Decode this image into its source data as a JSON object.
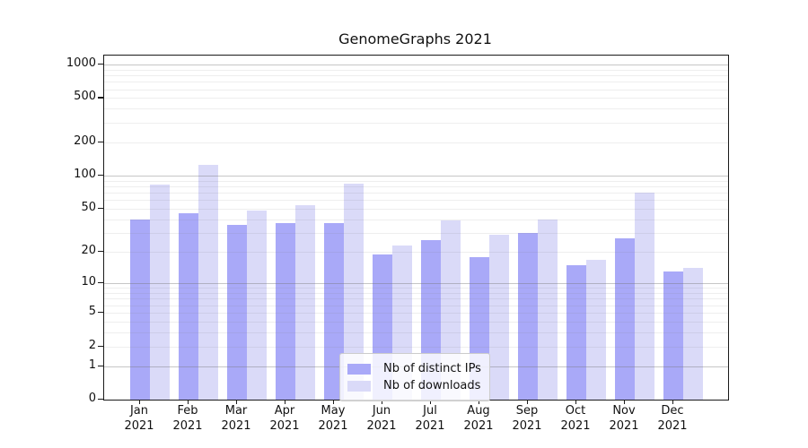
{
  "chart_data": {
    "type": "bar",
    "title": "GenomeGraphs 2021",
    "categories": [
      "Jan 2021",
      "Feb 2021",
      "Mar 2021",
      "Apr 2021",
      "May 2021",
      "Jun 2021",
      "Jul 2021",
      "Aug 2021",
      "Sep 2021",
      "Oct 2021",
      "Nov 2021",
      "Dec 2021"
    ],
    "series": [
      {
        "name": "Nb of distinct IPs",
        "color": "#a9a9f8",
        "values": [
          40,
          46,
          36,
          37,
          37,
          19,
          26,
          18,
          30,
          15,
          27,
          13
        ]
      },
      {
        "name": "Nb of downloads",
        "color": "#dadaf8",
        "values": [
          83,
          126,
          48,
          54,
          85,
          23,
          39,
          29,
          40,
          17,
          70,
          14
        ]
      }
    ],
    "xlabel": "",
    "ylabel": "",
    "y_axis": {
      "scale": "log10(1+x)",
      "tick_labels": [
        1000,
        500,
        200,
        100,
        50,
        20,
        10,
        5,
        2,
        1,
        0
      ],
      "ylim": [
        0,
        1200
      ]
    },
    "grid": "on",
    "legend_position": "inside-bottom-center"
  }
}
